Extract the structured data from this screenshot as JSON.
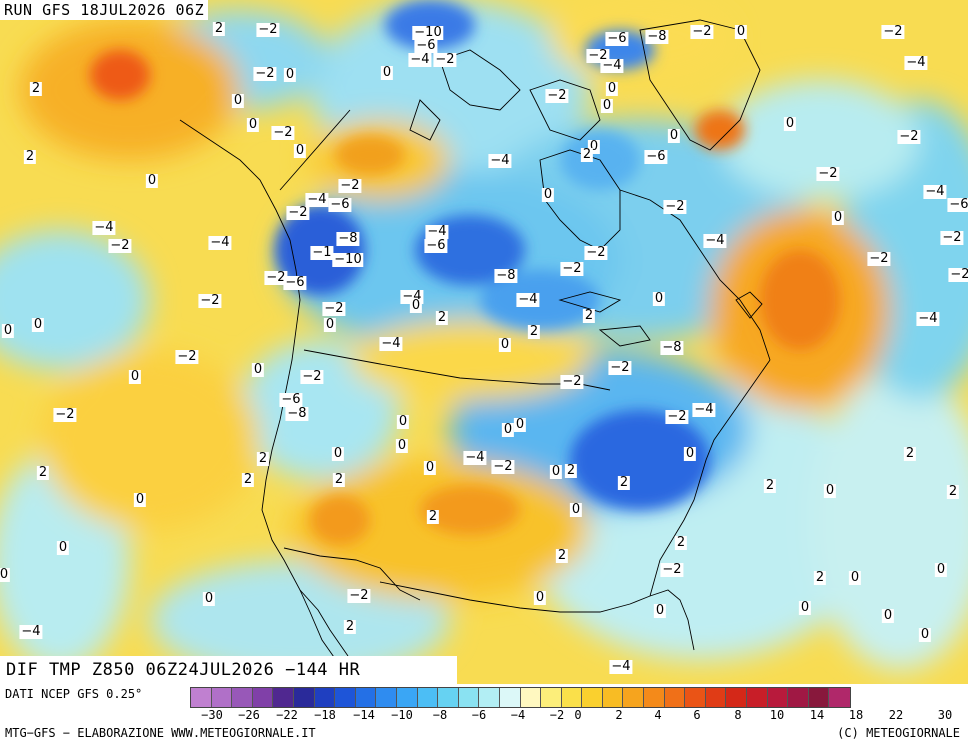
{
  "run_label": "RUN GFS 18JUL2026 06Z",
  "title": "DIF TMP Z850 06Z24JUL2026 −144 HR",
  "data_source": "DATI NCEP GFS 0.25°",
  "credit": "MTG−GFS − ELABORAZIONE WWW.METEOGIORNALE.IT",
  "copyright": "(C) METEOGIORNALE",
  "colorbar": {
    "colors": [
      "#c080d0",
      "#b070c8",
      "#9858b8",
      "#8040a8",
      "#502890",
      "#2a2a9a",
      "#1f3fc0",
      "#1e55d8",
      "#2470e6",
      "#2f8cf0",
      "#3aa6f5",
      "#4cbef5",
      "#66d2f2",
      "#8ae2f2",
      "#b2eef4",
      "#dcf8f8",
      "#fff8c0",
      "#fcee7a",
      "#fae04a",
      "#fad02e",
      "#f8bc24",
      "#f6a41e",
      "#f48a1a",
      "#f07018",
      "#ea5416",
      "#e03c16",
      "#d42818",
      "#c81e28",
      "#b81a3c",
      "#a01844",
      "#88183c",
      "#b0286a"
    ],
    "tick_labels": [
      "−30",
      "−26",
      "−22",
      "−18",
      "−14",
      "−10",
      "−8",
      "−6",
      "−4",
      "−2",
      "0",
      "2",
      "4",
      "6",
      "8",
      "10",
      "14",
      "18",
      "22",
      "30"
    ]
  },
  "contour_labels": [
    "−10",
    "−6",
    "−4",
    "−2",
    "0",
    "−6",
    "−8",
    "−2",
    "−4",
    "−2",
    "0",
    "−2",
    "2",
    "−2",
    "−4",
    "−2",
    "0",
    "2",
    "0",
    "−2",
    "0",
    "0",
    "0",
    "−2",
    "0",
    "0",
    "2",
    "0",
    "0",
    "−2",
    "2",
    "−4",
    "−6",
    "0",
    "−2",
    "0",
    "0",
    "−2",
    "−4",
    "−6",
    "−8",
    "−1",
    "−10",
    "−2",
    "−4",
    "−6",
    "−4",
    "−6",
    "−2",
    "−8",
    "−4",
    "−2",
    "−2",
    "−2",
    "−4",
    "−2",
    "−2",
    "−4",
    "−4",
    "−2",
    "−2",
    "0",
    "−2",
    "0",
    "0",
    "−4",
    "0",
    "2",
    "2",
    "2",
    "0",
    "−4",
    "−2",
    "−6",
    "0",
    "−4",
    "−2",
    "−8",
    "−2",
    "−2",
    "0",
    "−2",
    "0",
    "−6",
    "−8",
    "0",
    "0",
    "0",
    "−2",
    "−4",
    "−2",
    "0",
    "0",
    "−4",
    "−2",
    "0",
    "2",
    "2",
    "0",
    "2",
    "0",
    "2",
    "2",
    "0",
    "2",
    "2",
    "2",
    "0",
    "2",
    "2",
    "0",
    "2",
    "2",
    "0",
    "0",
    "−2",
    "0",
    "2",
    "0",
    "0",
    "0",
    "0",
    "0",
    "0",
    "0",
    "−2",
    "2",
    "−4",
    "−4",
    "−2",
    "0"
  ]
}
